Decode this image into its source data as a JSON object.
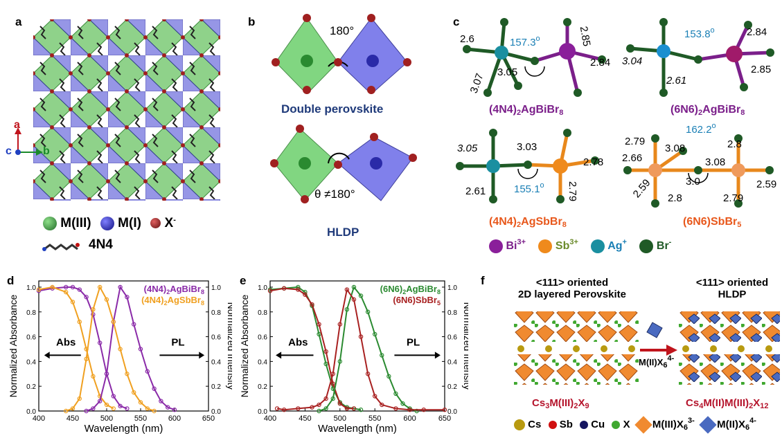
{
  "panel_a": {
    "letter": "a",
    "axes": {
      "a": "a",
      "b": "b",
      "c": "c"
    },
    "legend": {
      "m3": "M(III)",
      "m1": "M(I)",
      "x": "X",
      "x_sup": "-",
      "ligand": "4N4"
    }
  },
  "panel_b": {
    "letter": "b",
    "top_angle": "180°",
    "top_title": "Double perovskite",
    "bottom_angle": "θ ≠180°",
    "bottom_title": "HLDP"
  },
  "panel_c": {
    "letter": "c",
    "s1": {
      "angle": "157.3",
      "bonds": [
        "2.6",
        "2.85",
        "3.07",
        "3.05",
        "2.84"
      ],
      "formula": "(4N4)",
      "formula_sub": "2",
      "formula_rest": "AgBiBr",
      "formula_sub2": "8"
    },
    "s2": {
      "angle": "153.8",
      "bonds": [
        "2.84",
        "3.04",
        "2.61",
        "2.85"
      ],
      "formula": "(6N6)",
      "formula_sub": "2",
      "formula_rest": "AgBiBr",
      "formula_sub2": "8"
    },
    "s3": {
      "angle": "155.1",
      "bonds": [
        "3.05",
        "3.03",
        "2.78",
        "2.61",
        "2.79"
      ],
      "formula": "(4N4)",
      "formula_sub": "2",
      "formula_rest": "AgSbBr",
      "formula_sub2": "8"
    },
    "s4": {
      "angle": "162.2",
      "bonds": [
        "2.79",
        "3.08",
        "2.8",
        "2.66",
        "3.08",
        "2.59",
        "3.0",
        "2.59",
        "2.8",
        "2.79"
      ],
      "formula": "(6N6)SbBr",
      "formula_sub": "5"
    },
    "legend": [
      {
        "name": "Bi",
        "sup": "3+",
        "color": "#8a1f9a"
      },
      {
        "name": "Sb",
        "sup": "3+",
        "color": "#ef8a1c"
      },
      {
        "name": "Ag",
        "sup": "+",
        "color": "#1a8fa0"
      },
      {
        "name": "Br",
        "sup": "-",
        "color": "#1f5a26"
      }
    ]
  },
  "panel_d": {
    "letter": "d",
    "chart_data": {
      "type": "line",
      "xlabel": "Wavelength (nm)",
      "ylabel": "Normalized Absorbance",
      "ylabel2": "Normalized Intensity",
      "xlim": [
        400,
        650
      ],
      "ylim": [
        0,
        1.05
      ],
      "xticks": [
        400,
        450,
        500,
        550,
        600,
        650
      ],
      "yticks": [
        0.0,
        0.2,
        0.4,
        0.6,
        0.8,
        1.0
      ],
      "arrow_left": "Abs",
      "arrow_right": "PL",
      "legend": [
        {
          "prefix": "(4N4)",
          "sub": "2",
          "mid": "AgBiBr",
          "sub2": "8",
          "color": "#8a2aa8"
        },
        {
          "prefix": "(4N4)",
          "sub": "2",
          "mid": "AgSbBr",
          "sub2": "8",
          "color": "#f0a020"
        }
      ],
      "series": [
        {
          "color": "#8a2aa8",
          "x": [
            400,
            420,
            440,
            450,
            460,
            470,
            480,
            490,
            500,
            510,
            520,
            530
          ],
          "y": [
            0.97,
            0.99,
            1.0,
            1.0,
            0.98,
            0.92,
            0.78,
            0.55,
            0.3,
            0.12,
            0.04,
            0.02
          ]
        },
        {
          "color": "#f0a020",
          "x": [
            400,
            420,
            440,
            450,
            460,
            470,
            480,
            490,
            500,
            510
          ],
          "y": [
            0.98,
            1.0,
            0.96,
            0.88,
            0.72,
            0.5,
            0.28,
            0.12,
            0.05,
            0.02
          ]
        },
        {
          "color": "#8a2aa8",
          "x": [
            470,
            480,
            490,
            500,
            510,
            520,
            530,
            540,
            550,
            560,
            570,
            580,
            590,
            600
          ],
          "y": [
            0.0,
            0.02,
            0.08,
            0.3,
            0.72,
            1.0,
            0.92,
            0.7,
            0.5,
            0.32,
            0.18,
            0.08,
            0.03,
            0.01
          ]
        },
        {
          "color": "#f0a020",
          "x": [
            440,
            450,
            460,
            470,
            480,
            490,
            500,
            510,
            520,
            530,
            540,
            550,
            560,
            570
          ],
          "y": [
            0.0,
            0.02,
            0.1,
            0.42,
            0.82,
            1.0,
            0.9,
            0.72,
            0.5,
            0.3,
            0.15,
            0.07,
            0.02,
            0.0
          ]
        }
      ]
    }
  },
  "panel_e": {
    "letter": "e",
    "chart_data": {
      "type": "line",
      "xlabel": "Wavelength (nm)",
      "ylabel": "Normalized Absorbance",
      "ylabel2": "Normalized Intensity",
      "xlim": [
        400,
        650
      ],
      "ylim": [
        0,
        1.05
      ],
      "xticks": [
        400,
        450,
        500,
        550,
        600,
        650
      ],
      "yticks": [
        0.0,
        0.2,
        0.4,
        0.6,
        0.8,
        1.0
      ],
      "arrow_left": "Abs",
      "arrow_right": "PL",
      "legend": [
        {
          "prefix": "(6N6)",
          "sub": "2",
          "mid": "AgBiBr",
          "sub2": "8",
          "color": "#2a8a30"
        },
        {
          "prefix": "(6N6)SbBr",
          "sub": "5",
          "mid": "",
          "sub2": "",
          "color": "#a82020"
        }
      ],
      "series": [
        {
          "color": "#2a8a30",
          "x": [
            400,
            420,
            440,
            450,
            460,
            470,
            480,
            490,
            500,
            510,
            520,
            530
          ],
          "y": [
            0.98,
            0.99,
            1.0,
            0.96,
            0.85,
            0.62,
            0.38,
            0.18,
            0.07,
            0.03,
            0.02,
            0.01
          ]
        },
        {
          "color": "#a82020",
          "x": [
            400,
            420,
            440,
            450,
            460,
            470,
            480,
            490,
            500,
            510,
            520
          ],
          "y": [
            0.97,
            0.99,
            0.98,
            0.94,
            0.86,
            0.7,
            0.48,
            0.22,
            0.06,
            0.02,
            0.02
          ]
        },
        {
          "color": "#2a8a30",
          "x": [
            470,
            480,
            490,
            500,
            510,
            520,
            530,
            540,
            550,
            560,
            570,
            580,
            590,
            600,
            610
          ],
          "y": [
            0.0,
            0.02,
            0.1,
            0.4,
            0.82,
            1.0,
            0.93,
            0.8,
            0.62,
            0.45,
            0.28,
            0.14,
            0.06,
            0.02,
            0.0
          ]
        },
        {
          "color": "#a82020",
          "x": [
            410,
            420,
            440,
            460,
            470,
            480,
            490,
            500,
            510,
            520,
            530,
            540,
            550,
            560,
            580,
            600,
            620,
            650
          ],
          "y": [
            0.02,
            0.01,
            0.02,
            0.03,
            0.05,
            0.1,
            0.3,
            0.7,
            0.98,
            0.9,
            0.6,
            0.3,
            0.12,
            0.05,
            0.02,
            0.01,
            0.01,
            0.01
          ]
        }
      ]
    }
  },
  "panel_f": {
    "letter": "f",
    "left_title1": "<111>  oriented",
    "left_title2": "2D layered Perovskite",
    "right_title1": "<111>  oriented",
    "right_title2": "HLDP",
    "arrow_label": "M(II)X",
    "arrow_label_sub": "6",
    "arrow_label_sup": "4-",
    "left_formula": "Cs",
    "left_sub1": "3",
    "left_mid": "M(III)",
    "left_sub2": "2",
    "left_x": "X",
    "left_sub3": "9",
    "right_formula": "Cs",
    "right_sub1": "4",
    "right_mid": "M(II)M(III)",
    "right_sub2": "2",
    "right_x": "X",
    "right_sub3": "12",
    "legend": [
      {
        "name": "Cs",
        "color": "#b89a10"
      },
      {
        "name": "Sb",
        "color": "#d01010"
      },
      {
        "name": "Cu",
        "color": "#151560"
      },
      {
        "name": "X",
        "color": "#40a830"
      }
    ],
    "legend_m3": "M(III)X",
    "legend_m3_sub": "6",
    "legend_m3_sup": "3-",
    "legend_m2": "M(II)X",
    "legend_m2_sub": "6",
    "legend_m2_sup": "4-"
  }
}
